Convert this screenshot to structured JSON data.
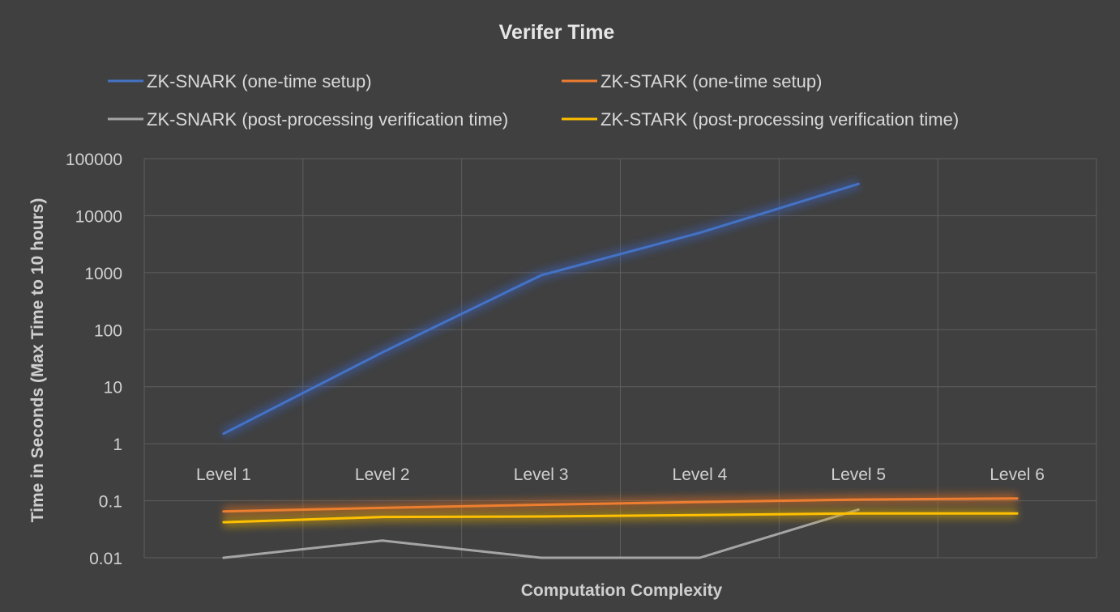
{
  "chart_data": {
    "type": "line",
    "title": "Verifer Time",
    "xlabel": "Computation Complexity",
    "ylabel": "Time in Seconds (Max Time to 10 hours)",
    "yscale": "log",
    "ylim": [
      0.01,
      100000
    ],
    "y_ticks": [
      "0.01",
      "0.1",
      "1",
      "10",
      "100",
      "1000",
      "10000",
      "100000"
    ],
    "categories": [
      "Level 1",
      "Level 2",
      "Level 3",
      "Level 4",
      "Level 5",
      "Level 6"
    ],
    "grid": true,
    "legend_position": "top",
    "series": [
      {
        "name": "ZK-SNARK (one-time setup)",
        "color": "#4472c4",
        "glow": "#3b5fb8",
        "values": [
          1.5,
          40,
          900,
          5000,
          36000,
          null
        ]
      },
      {
        "name": "ZK-STARK (one-time setup)",
        "color": "#ed7d31",
        "glow": "#e0701f",
        "values": [
          0.065,
          0.075,
          0.085,
          0.095,
          0.105,
          0.11
        ]
      },
      {
        "name": "ZK-SNARK (post-processing verification time)",
        "color": "#a5a5a5",
        "glow": null,
        "values": [
          0.01,
          0.02,
          0.01,
          0.01,
          0.07,
          null
        ]
      },
      {
        "name": "ZK-STARK (post-processing verification time)",
        "color": "#ffc000",
        "glow": "#d9a400",
        "values": [
          0.042,
          0.052,
          0.053,
          0.056,
          0.06,
          0.06
        ]
      }
    ]
  }
}
